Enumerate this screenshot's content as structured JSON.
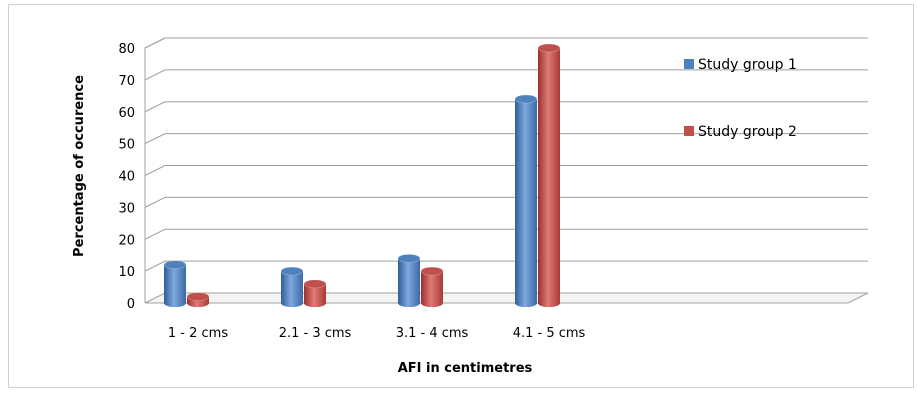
{
  "chart_data": {
    "type": "bar",
    "categories": [
      "1 - 2 cms",
      "2.1 - 3 cms",
      "3.1 - 4 cms",
      "4.1 - 5 cms"
    ],
    "series": [
      {
        "name": "Study group 1",
        "values": [
          12,
          10,
          14,
          64
        ],
        "color": "#4f81bd"
      },
      {
        "name": "Study group 2",
        "values": [
          2,
          6,
          10,
          80
        ],
        "color": "#c0504d"
      }
    ],
    "yticks": [
      0,
      10,
      20,
      30,
      40,
      50,
      60,
      70,
      80
    ],
    "ylim": [
      0,
      80
    ],
    "xlabel": "AFI  in centimetres",
    "ylabel": "Percentage  of occurence",
    "grid": true,
    "legend_position": "right"
  }
}
